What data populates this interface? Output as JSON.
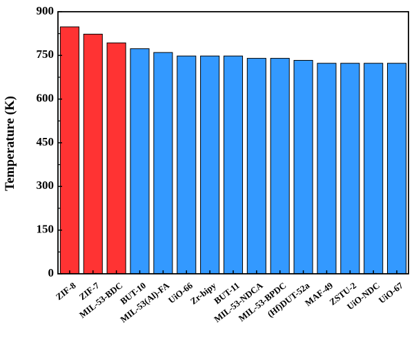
{
  "chart_data": {
    "type": "bar",
    "title": "",
    "xlabel": "",
    "ylabel": "Temperature (K)",
    "ylim": [
      0,
      900
    ],
    "yticks": [
      0,
      150,
      300,
      450,
      600,
      750,
      900
    ],
    "grid": false,
    "legend": "none",
    "categories": [
      "ZIF-8",
      "ZIF-7",
      "MIL-53-BDC",
      "BUT-10",
      "MIL-53(Al)-FA",
      "UiO-66",
      "Zr-bipy",
      "BUT-11",
      "MIL-53-NDCA",
      "MIL-53-BPDC",
      "(Hf)DUT-52a",
      "MAF-49",
      "ZSTU-2",
      "UiO-NDC",
      "UiO-67"
    ],
    "values": [
      848,
      823,
      793,
      773,
      760,
      748,
      748,
      748,
      740,
      740,
      733,
      723,
      723,
      723,
      723
    ],
    "bar_colors": [
      "#ff3333",
      "#ff3333",
      "#ff3333",
      "#3399ff",
      "#3399ff",
      "#3399ff",
      "#3399ff",
      "#3399ff",
      "#3399ff",
      "#3399ff",
      "#3399ff",
      "#3399ff",
      "#3399ff",
      "#3399ff",
      "#3399ff"
    ],
    "bar_edge_color": "#000000"
  }
}
